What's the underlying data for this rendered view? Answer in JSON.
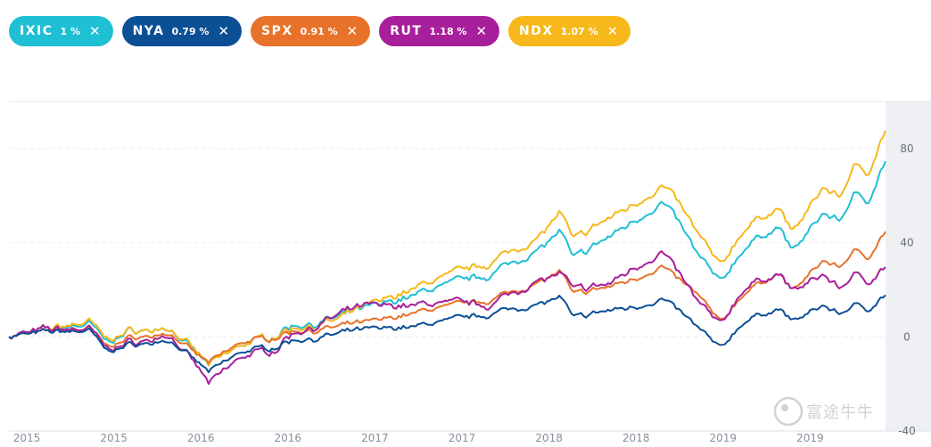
{
  "chips": [
    {
      "symbol": "IXIC",
      "pct": "1 %",
      "color": "#1fbfd4"
    },
    {
      "symbol": "NYA",
      "pct": "0.79 %",
      "color": "#0b4f95"
    },
    {
      "symbol": "SPX",
      "pct": "0.91 %",
      "color": "#e8722a"
    },
    {
      "symbol": "RUT",
      "pct": "1.18 %",
      "color": "#a71f9a"
    },
    {
      "symbol": "NDX",
      "pct": "1.07 %",
      "color": "#f6b81a"
    }
  ],
  "close_icon": "close-icon",
  "watermark": "富途牛牛",
  "chart_data": {
    "type": "line",
    "title": "",
    "xlabel": "",
    "ylabel": "",
    "x_tick_labels": [
      "2015",
      "2015",
      "2016",
      "2016",
      "2017",
      "2017",
      "2018",
      "2018",
      "2019",
      "2019"
    ],
    "y_tick_labels": [
      "80",
      "40",
      "0",
      "-40"
    ],
    "ylim": [
      -40,
      100
    ],
    "x_start": 2015.0,
    "x_end": 2019.9,
    "series": [
      {
        "name": "IXIC",
        "color": "#1fbfd4",
        "points": [
          [
            2015.0,
            0
          ],
          [
            2015.2,
            3
          ],
          [
            2015.45,
            6
          ],
          [
            2015.55,
            -2
          ],
          [
            2015.7,
            3
          ],
          [
            2015.9,
            3
          ],
          [
            2016.05,
            -8
          ],
          [
            2016.12,
            -12
          ],
          [
            2016.3,
            -3
          ],
          [
            2016.5,
            1
          ],
          [
            2016.55,
            4
          ],
          [
            2016.85,
            8
          ],
          [
            2017.0,
            12
          ],
          [
            2017.3,
            19
          ],
          [
            2017.5,
            24
          ],
          [
            2017.7,
            27
          ],
          [
            2017.95,
            37
          ],
          [
            2018.08,
            45
          ],
          [
            2018.15,
            33
          ],
          [
            2018.35,
            42
          ],
          [
            2018.5,
            50
          ],
          [
            2018.65,
            57
          ],
          [
            2018.72,
            52
          ],
          [
            2018.85,
            35
          ],
          [
            2018.98,
            23
          ],
          [
            2019.1,
            37
          ],
          [
            2019.3,
            47
          ],
          [
            2019.38,
            37
          ],
          [
            2019.55,
            52
          ],
          [
            2019.65,
            50
          ],
          [
            2019.72,
            61
          ],
          [
            2019.8,
            58
          ],
          [
            2019.9,
            75
          ]
        ]
      },
      {
        "name": "NDX",
        "color": "#f6b81a",
        "points": [
          [
            2015.0,
            0
          ],
          [
            2015.2,
            3
          ],
          [
            2015.45,
            7
          ],
          [
            2015.55,
            -1
          ],
          [
            2015.7,
            3
          ],
          [
            2015.9,
            3
          ],
          [
            2016.05,
            -7
          ],
          [
            2016.12,
            -12
          ],
          [
            2016.3,
            -3
          ],
          [
            2016.5,
            1
          ],
          [
            2016.55,
            3
          ],
          [
            2016.85,
            7
          ],
          [
            2017.0,
            13
          ],
          [
            2017.3,
            22
          ],
          [
            2017.5,
            28
          ],
          [
            2017.7,
            32
          ],
          [
            2017.95,
            42
          ],
          [
            2018.08,
            53
          ],
          [
            2018.15,
            41
          ],
          [
            2018.35,
            50
          ],
          [
            2018.5,
            57
          ],
          [
            2018.65,
            64
          ],
          [
            2018.72,
            60
          ],
          [
            2018.85,
            44
          ],
          [
            2018.98,
            30
          ],
          [
            2019.1,
            45
          ],
          [
            2019.3,
            55
          ],
          [
            2019.38,
            45
          ],
          [
            2019.55,
            63
          ],
          [
            2019.65,
            60
          ],
          [
            2019.72,
            73
          ],
          [
            2019.8,
            70
          ],
          [
            2019.9,
            88
          ]
        ]
      },
      {
        "name": "SPX",
        "color": "#e8722a",
        "points": [
          [
            2015.0,
            0
          ],
          [
            2015.2,
            2
          ],
          [
            2015.45,
            4
          ],
          [
            2015.55,
            -4
          ],
          [
            2015.7,
            0
          ],
          [
            2015.9,
            1
          ],
          [
            2016.05,
            -8
          ],
          [
            2016.12,
            -11
          ],
          [
            2016.3,
            -2
          ],
          [
            2016.5,
            0
          ],
          [
            2016.55,
            2
          ],
          [
            2016.85,
            4
          ],
          [
            2017.0,
            6
          ],
          [
            2017.3,
            11
          ],
          [
            2017.5,
            14
          ],
          [
            2017.7,
            16
          ],
          [
            2017.95,
            23
          ],
          [
            2018.08,
            28
          ],
          [
            2018.15,
            18
          ],
          [
            2018.35,
            21
          ],
          [
            2018.5,
            25
          ],
          [
            2018.65,
            30
          ],
          [
            2018.72,
            26
          ],
          [
            2018.85,
            18
          ],
          [
            2018.98,
            6
          ],
          [
            2019.1,
            18
          ],
          [
            2019.3,
            27
          ],
          [
            2019.38,
            20
          ],
          [
            2019.55,
            32
          ],
          [
            2019.65,
            30
          ],
          [
            2019.72,
            37
          ],
          [
            2019.8,
            34
          ],
          [
            2019.9,
            45
          ]
        ]
      },
      {
        "name": "RUT",
        "color": "#a71f9a",
        "points": [
          [
            2015.0,
            0
          ],
          [
            2015.2,
            3
          ],
          [
            2015.45,
            4
          ],
          [
            2015.55,
            -5
          ],
          [
            2015.7,
            -2
          ],
          [
            2015.9,
            0
          ],
          [
            2016.05,
            -13
          ],
          [
            2016.12,
            -20
          ],
          [
            2016.3,
            -8
          ],
          [
            2016.5,
            -5
          ],
          [
            2016.55,
            0
          ],
          [
            2016.85,
            9
          ],
          [
            2017.0,
            13
          ],
          [
            2017.3,
            14
          ],
          [
            2017.5,
            15
          ],
          [
            2017.7,
            14
          ],
          [
            2017.95,
            24
          ],
          [
            2018.08,
            27
          ],
          [
            2018.15,
            20
          ],
          [
            2018.35,
            22
          ],
          [
            2018.5,
            30
          ],
          [
            2018.65,
            36
          ],
          [
            2018.72,
            30
          ],
          [
            2018.85,
            15
          ],
          [
            2018.98,
            5
          ],
          [
            2019.1,
            20
          ],
          [
            2019.3,
            27
          ],
          [
            2019.38,
            20
          ],
          [
            2019.55,
            26
          ],
          [
            2019.65,
            21
          ],
          [
            2019.72,
            27
          ],
          [
            2019.8,
            24
          ],
          [
            2019.9,
            30
          ]
        ]
      },
      {
        "name": "NYA",
        "color": "#0b4f95",
        "points": [
          [
            2015.0,
            0
          ],
          [
            2015.2,
            2
          ],
          [
            2015.45,
            3
          ],
          [
            2015.55,
            -6
          ],
          [
            2015.7,
            -3
          ],
          [
            2015.9,
            -2
          ],
          [
            2016.05,
            -11
          ],
          [
            2016.12,
            -15
          ],
          [
            2016.3,
            -6
          ],
          [
            2016.5,
            -4
          ],
          [
            2016.55,
            -2
          ],
          [
            2016.85,
            1
          ],
          [
            2017.0,
            3
          ],
          [
            2017.3,
            5
          ],
          [
            2017.5,
            8
          ],
          [
            2017.7,
            10
          ],
          [
            2017.95,
            14
          ],
          [
            2018.08,
            17
          ],
          [
            2018.15,
            8
          ],
          [
            2018.35,
            11
          ],
          [
            2018.5,
            13
          ],
          [
            2018.65,
            16
          ],
          [
            2018.72,
            13
          ],
          [
            2018.85,
            4
          ],
          [
            2018.98,
            -5
          ],
          [
            2019.1,
            6
          ],
          [
            2019.3,
            12
          ],
          [
            2019.38,
            7
          ],
          [
            2019.55,
            13
          ],
          [
            2019.65,
            10
          ],
          [
            2019.72,
            14
          ],
          [
            2019.8,
            12
          ],
          [
            2019.9,
            18
          ]
        ]
      }
    ]
  }
}
